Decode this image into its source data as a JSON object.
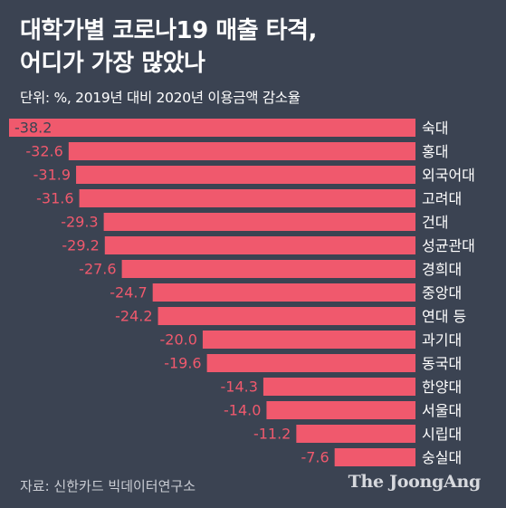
{
  "header": {
    "title_line1": "대학가별 코로나19 매출 타격,",
    "title_line2": "어디가 가장 많았나",
    "subtitle": "단위: %, 2019년 대비 2020년 이용금액 감소율"
  },
  "footer": {
    "source": "자료: 신한카드 빅데이터연구소",
    "brand": "The JoongAng"
  },
  "colors": {
    "background": "#3b4352",
    "bar": "#f0596d",
    "value_label": "#f0596d",
    "category_label": "#ffffff"
  },
  "chart_data": {
    "type": "bar",
    "orientation": "horizontal",
    "categories": [
      "숙대",
      "홍대",
      "외국어대",
      "고려대",
      "건대",
      "성균관대",
      "경희대",
      "중앙대",
      "연대 등",
      "과기대",
      "동국대",
      "한양대",
      "서울대",
      "시립대",
      "숭실대"
    ],
    "values": [
      -38.2,
      -32.6,
      -31.9,
      -31.6,
      -29.3,
      -29.2,
      -27.6,
      -24.7,
      -24.2,
      -20.0,
      -19.6,
      -14.3,
      -14.0,
      -11.2,
      -7.6
    ],
    "value_labels": [
      "-38.2",
      "-32.6",
      "-31.9",
      "-31.6",
      "-29.3",
      "-29.2",
      "-27.6",
      "-24.7",
      "-24.2",
      "-20.0",
      "-19.6",
      "-14.3",
      "-14.0",
      "-11.2",
      "-7.6"
    ],
    "title": "대학가별 코로나19 매출 타격, 어디가 가장 많았나",
    "unit": "%",
    "xlim": [
      -38.2,
      0
    ],
    "grid": false,
    "legend": "none"
  }
}
